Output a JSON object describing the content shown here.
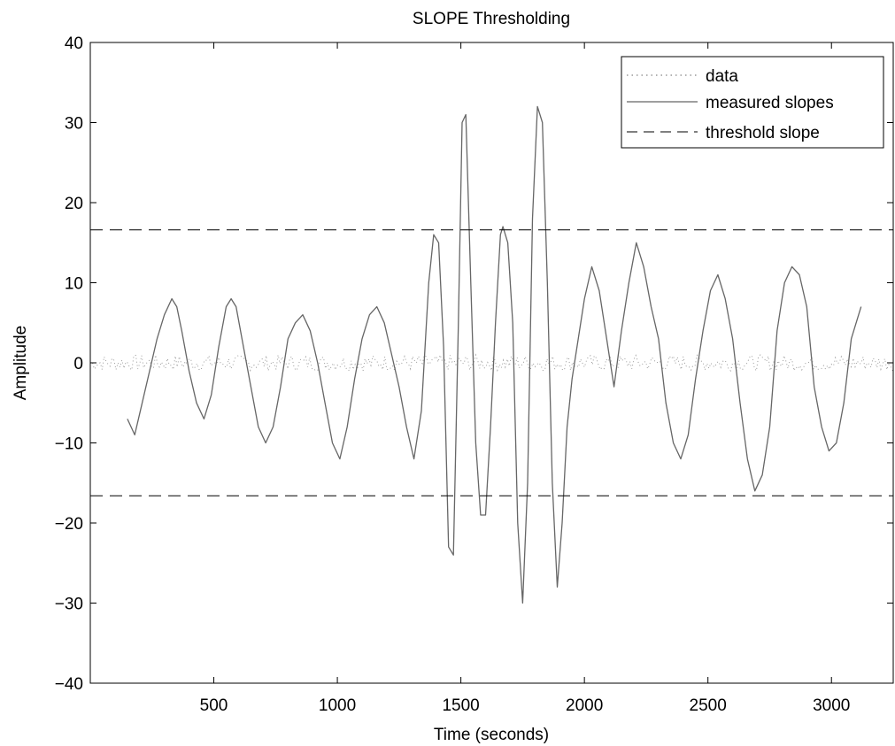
{
  "chart_data": {
    "type": "line",
    "title": "SLOPE Thresholding",
    "xlabel": "Time (seconds)",
    "ylabel": "Amplitude",
    "xlim": [
      0,
      3250
    ],
    "ylim": [
      -40,
      40
    ],
    "xticks": [
      500,
      1000,
      1500,
      2000,
      2500,
      3000
    ],
    "yticks": [
      -40,
      -30,
      -20,
      -10,
      0,
      10,
      20,
      30,
      40
    ],
    "grid": false,
    "legend_position": "top-right",
    "colors": {
      "data": "#999999",
      "slopes": "#666666",
      "threshold": "#000000"
    },
    "series": [
      {
        "name": "data",
        "style": "dotted",
        "x_start": 0,
        "x_end": 3250,
        "approx_amplitude": 1
      },
      {
        "name": "measured slopes",
        "style": "solid",
        "x": [
          150,
          180,
          210,
          240,
          270,
          300,
          330,
          350,
          370,
          400,
          430,
          460,
          490,
          520,
          550,
          570,
          590,
          620,
          650,
          680,
          710,
          740,
          770,
          800,
          830,
          860,
          890,
          920,
          950,
          980,
          1010,
          1040,
          1070,
          1100,
          1130,
          1160,
          1190,
          1220,
          1250,
          1280,
          1310,
          1340,
          1370,
          1390,
          1410,
          1430,
          1450,
          1470,
          1490,
          1505,
          1520,
          1540,
          1560,
          1580,
          1600,
          1620,
          1640,
          1660,
          1670,
          1690,
          1710,
          1730,
          1750,
          1770,
          1790,
          1810,
          1830,
          1850,
          1870,
          1890,
          1910,
          1930,
          1950,
          1970,
          2000,
          2030,
          2060,
          2090,
          2120,
          2150,
          2180,
          2210,
          2240,
          2270,
          2300,
          2330,
          2360,
          2390,
          2420,
          2450,
          2480,
          2510,
          2540,
          2570,
          2600,
          2630,
          2660,
          2690,
          2720,
          2750,
          2780,
          2810,
          2840,
          2870,
          2900,
          2930,
          2960,
          2990,
          3020,
          3050,
          3080,
          3110,
          3120
        ],
        "values": [
          -7,
          -9,
          -5,
          -1,
          3,
          6,
          8,
          7,
          4,
          -1,
          -5,
          -7,
          -4,
          2,
          7,
          8,
          7,
          2,
          -3,
          -8,
          -10,
          -8,
          -3,
          3,
          5,
          6,
          4,
          0,
          -5,
          -10,
          -12,
          -8,
          -2,
          3,
          6,
          7,
          5,
          1,
          -3,
          -8,
          -12,
          -6,
          10,
          16,
          15,
          2,
          -23,
          -24,
          5,
          30,
          31,
          10,
          -10,
          -19,
          -19,
          -8,
          5,
          16,
          17,
          15,
          5,
          -20,
          -30,
          -15,
          18,
          32,
          30,
          10,
          -15,
          -28,
          -20,
          -8,
          -2,
          2,
          8,
          12,
          9,
          3,
          -3,
          4,
          10,
          15,
          12,
          7,
          3,
          -5,
          -10,
          -12,
          -9,
          -2,
          4,
          9,
          11,
          8,
          3,
          -5,
          -12,
          -16,
          -14,
          -8,
          4,
          10,
          12,
          11,
          7,
          -3,
          -8,
          -11,
          -10,
          -5,
          3,
          6,
          7
        ]
      },
      {
        "name": "threshold slope",
        "style": "dashed",
        "values": [
          16.6,
          -16.6
        ]
      }
    ]
  }
}
